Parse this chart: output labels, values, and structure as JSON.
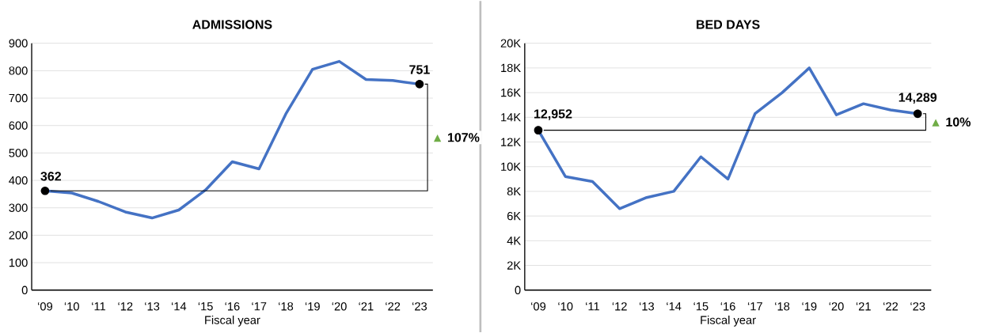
{
  "chart_data": [
    {
      "type": "line",
      "title": "ADMISSIONS",
      "xlabel": "Fiscal year",
      "categories": [
        "‘09",
        "‘10",
        "‘11",
        "‘12",
        "‘13",
        "‘14",
        "‘15",
        "‘16",
        "‘17",
        "‘18",
        "‘19",
        "‘20",
        "‘21",
        "‘22",
        "‘23"
      ],
      "series": [
        {
          "color": "#4472c4",
          "values": [
            362,
            354,
            323,
            285,
            263,
            292,
            365,
            468,
            442,
            642,
            805,
            834,
            768,
            764,
            751
          ],
          "value_labels": [
            "362",
            null,
            null,
            null,
            null,
            null,
            null,
            null,
            null,
            null,
            null,
            null,
            null,
            null,
            "751"
          ]
        }
      ],
      "ylim": [
        0,
        900
      ],
      "yticks": [
        0,
        100,
        200,
        300,
        400,
        500,
        600,
        700,
        800,
        900
      ],
      "grid": "y",
      "annotations": [
        "▲",
        "107%"
      ]
    },
    {
      "type": "line",
      "title": "BED DAYS",
      "xlabel": "Fiscal year",
      "categories": [
        "‘09",
        "‘10",
        "‘11",
        "‘12",
        "‘13",
        "‘14",
        "‘15",
        "‘16",
        "‘17",
        "‘18",
        "‘19",
        "‘20",
        "‘21",
        "‘22",
        "‘23"
      ],
      "series": [
        {
          "color": "#4472c4",
          "values": [
            12952,
            9200,
            8800,
            6600,
            7500,
            8000,
            10800,
            9000,
            14300,
            16000,
            18000,
            14200,
            15100,
            14600,
            14289
          ],
          "value_labels": [
            "12,952",
            null,
            null,
            null,
            null,
            null,
            null,
            null,
            null,
            null,
            null,
            null,
            null,
            null,
            "14,289"
          ]
        }
      ],
      "ylim": [
        0,
        20000
      ],
      "yticks": [
        0,
        {
          "value": 2000,
          "label": "2K"
        },
        {
          "value": 4000,
          "label": "4K"
        },
        {
          "value": 6000,
          "label": "6K"
        },
        {
          "value": 8000,
          "label": "8K"
        },
        {
          "value": 10000,
          "label": "10K"
        },
        {
          "value": 12000,
          "label": "12K"
        },
        {
          "value": 14000,
          "label": "14K"
        },
        {
          "value": 16000,
          "label": "16K"
        },
        {
          "value": 18000,
          "label": "18K"
        },
        {
          "value": 20000,
          "label": "20K"
        }
      ],
      "grid": "y",
      "annotations": [
        "▲",
        "10%"
      ]
    }
  ]
}
